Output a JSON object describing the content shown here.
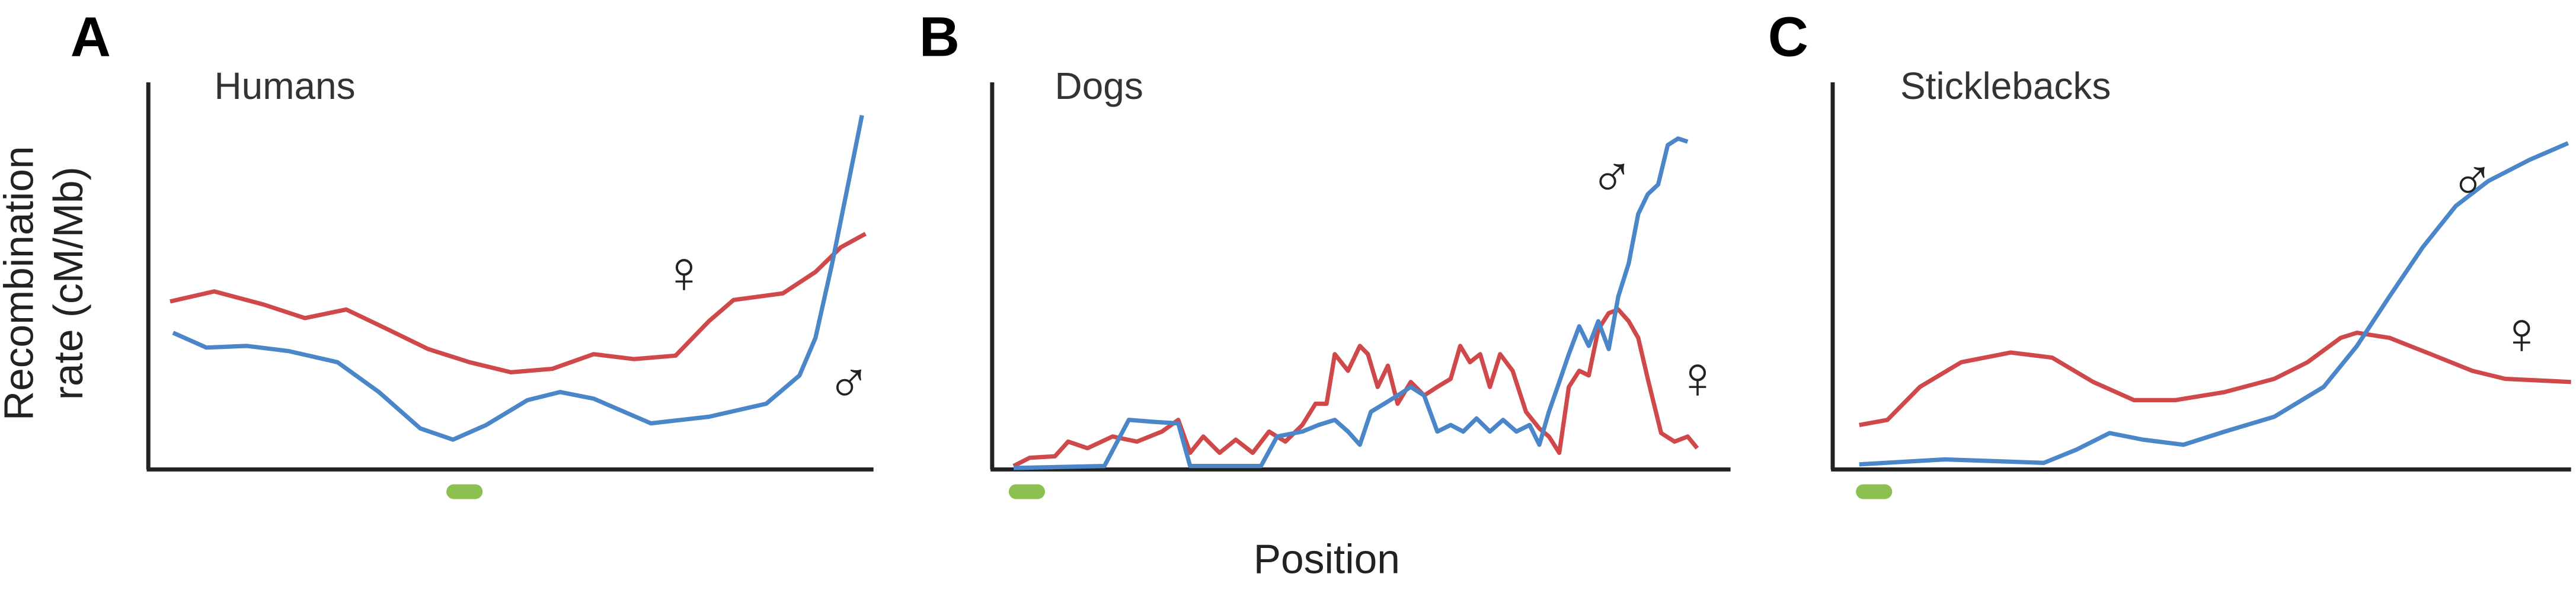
{
  "chart_data": [
    {
      "type": "line",
      "label": "A",
      "title": "Humans",
      "ylabel": "Recombination rate (cM/Mb)",
      "xlim": [
        0,
        100
      ],
      "ylim": [
        0,
        100
      ],
      "marker_x": 43.6,
      "marker_color": "#8cc152",
      "series": [
        {
          "name": "♀",
          "color": "#d0494a",
          "x": [
            3,
            9.1,
            15.9,
            21.6,
            27.3,
            33,
            38.6,
            44.3,
            50,
            55.7,
            61.4,
            67,
            72.7,
            77.3,
            80.7,
            87.5,
            92,
            95.5,
            98.9
          ],
          "values": [
            43.4,
            46,
            42.6,
            39.1,
            41.3,
            36.2,
            31.1,
            27.7,
            25.1,
            26,
            29.8,
            28.5,
            29.4,
            38.3,
            43.8,
            45.5,
            51,
            57.4,
            60.9
          ]
        },
        {
          "name": "♂",
          "color": "#4a86c8",
          "x": [
            3.4,
            8,
            13.6,
            19.3,
            26.1,
            31.8,
            37.5,
            42,
            46.6,
            52.3,
            56.8,
            61.4,
            69.3,
            77.3,
            85.2,
            89.8,
            92,
            94.3,
            96.6,
            98.4
          ],
          "values": [
            35.3,
            31.5,
            31.9,
            30.6,
            27.7,
            20,
            10.6,
            7.7,
            11.5,
            17.9,
            20,
            18.3,
            11.9,
            13.6,
            17,
            24.3,
            34,
            53.2,
            74.5,
            91.5
          ]
        }
      ]
    },
    {
      "type": "line",
      "label": "B",
      "title": "Dogs",
      "xlabel": "Position",
      "xlim": [
        0,
        100
      ],
      "ylim": [
        0,
        100
      ],
      "marker_x": 4.7,
      "marker_color": "#8cc152",
      "series": [
        {
          "name": "♀",
          "color": "#d0494a",
          "x": [
            2.9,
            5.1,
            8.5,
            10.3,
            12.9,
            16.3,
            19.6,
            23,
            25.2,
            26.8,
            28.6,
            30.8,
            33,
            35.3,
            37.5,
            39.7,
            42,
            43.8,
            45.3,
            46.4,
            48.2,
            49.8,
            50.9,
            52.2,
            53.6,
            54.9,
            56.7,
            58.5,
            60.3,
            62.1,
            63.4,
            64.7,
            66.1,
            67.4,
            68.8,
            70.5,
            72.3,
            74.1,
            75.4,
            76.8,
            78.1,
            79.5,
            80.8,
            82.1,
            83.5,
            84.8,
            86.2,
            87.5,
            88.8,
            90.6,
            92.4,
            94.2,
            95.5
          ],
          "values": [
            0.9,
            3,
            3.4,
            7.2,
            5.5,
            8.5,
            7.2,
            9.8,
            12.8,
            4.3,
            8.5,
            4.3,
            7.7,
            4.3,
            9.8,
            7.2,
            11.5,
            17,
            17,
            29.8,
            25.5,
            31.9,
            29.8,
            21.3,
            26.8,
            17,
            22.6,
            19.1,
            21.3,
            23.4,
            31.9,
            27.7,
            29.8,
            21.3,
            29.8,
            25.5,
            14.9,
            10.6,
            8.5,
            4.3,
            21.3,
            25.5,
            24.3,
            36.2,
            40.4,
            41.3,
            38.3,
            34,
            23.4,
            9.4,
            7.2,
            8.5,
            5.5
          ]
        },
        {
          "name": "♂",
          "color": "#4a86c8",
          "x": [
            2.9,
            15.2,
            18.5,
            21.9,
            25.2,
            26.8,
            36.4,
            38.6,
            42,
            44.2,
            46.4,
            48.2,
            49.8,
            51.3,
            53.1,
            54.9,
            56.7,
            58.5,
            60.3,
            62.1,
            63.8,
            65.6,
            67.4,
            69.2,
            71,
            72.8,
            74.1,
            75.4,
            76.8,
            78.1,
            79.5,
            80.8,
            82.1,
            83.5,
            84.8,
            86.2,
            87.5,
            88.8,
            90.2,
            91.5,
            92.9,
            94.2
          ],
          "values": [
            0.4,
            0.9,
            12.8,
            12.3,
            11.9,
            0.9,
            0.9,
            8.5,
            9.8,
            11.5,
            12.8,
            9.8,
            6.4,
            14.9,
            17,
            19.1,
            21.3,
            19.1,
            9.8,
            11.5,
            9.8,
            13.2,
            9.8,
            12.8,
            9.8,
            11.5,
            6.4,
            14.9,
            22.6,
            29.8,
            37,
            31.9,
            38.3,
            31.1,
            44.7,
            53.2,
            66,
            71.1,
            73.6,
            83.8,
            85.5,
            84.7
          ]
        }
      ]
    },
    {
      "type": "line",
      "label": "C",
      "title": "Sticklebacks",
      "xlim": [
        0,
        100
      ],
      "ylim": [
        0,
        100
      ],
      "marker_x": 5.6,
      "marker_color": "#8cc152",
      "series": [
        {
          "name": "♀",
          "color": "#d0494a",
          "x": [
            3.6,
            7.4,
            11.8,
            17.4,
            24.1,
            29.7,
            35.3,
            40.8,
            46.4,
            53.1,
            59.8,
            64.3,
            68.8,
            71,
            75.4,
            81,
            86.6,
            91.1,
            100
          ],
          "values": [
            11.5,
            12.8,
            21.3,
            27.7,
            30.2,
            28.9,
            22.6,
            17.9,
            17.9,
            20,
            23.4,
            27.7,
            34,
            35.3,
            34,
            29.8,
            25.5,
            23.4,
            22.6
          ]
        },
        {
          "name": "♂",
          "color": "#4a86c8",
          "x": [
            3.6,
            15.2,
            23,
            28.6,
            33,
            37.5,
            42,
            47.5,
            53.1,
            59.8,
            66.5,
            71,
            75.4,
            79.9,
            84.4,
            88.8,
            94.4,
            99.6
          ],
          "values": [
            1.3,
            2.6,
            2.1,
            1.7,
            5.1,
            9.4,
            7.7,
            6.4,
            9.8,
            13.6,
            21.3,
            31.9,
            44.7,
            57.4,
            68.1,
            74.5,
            80,
            84.3
          ]
        }
      ]
    }
  ]
}
